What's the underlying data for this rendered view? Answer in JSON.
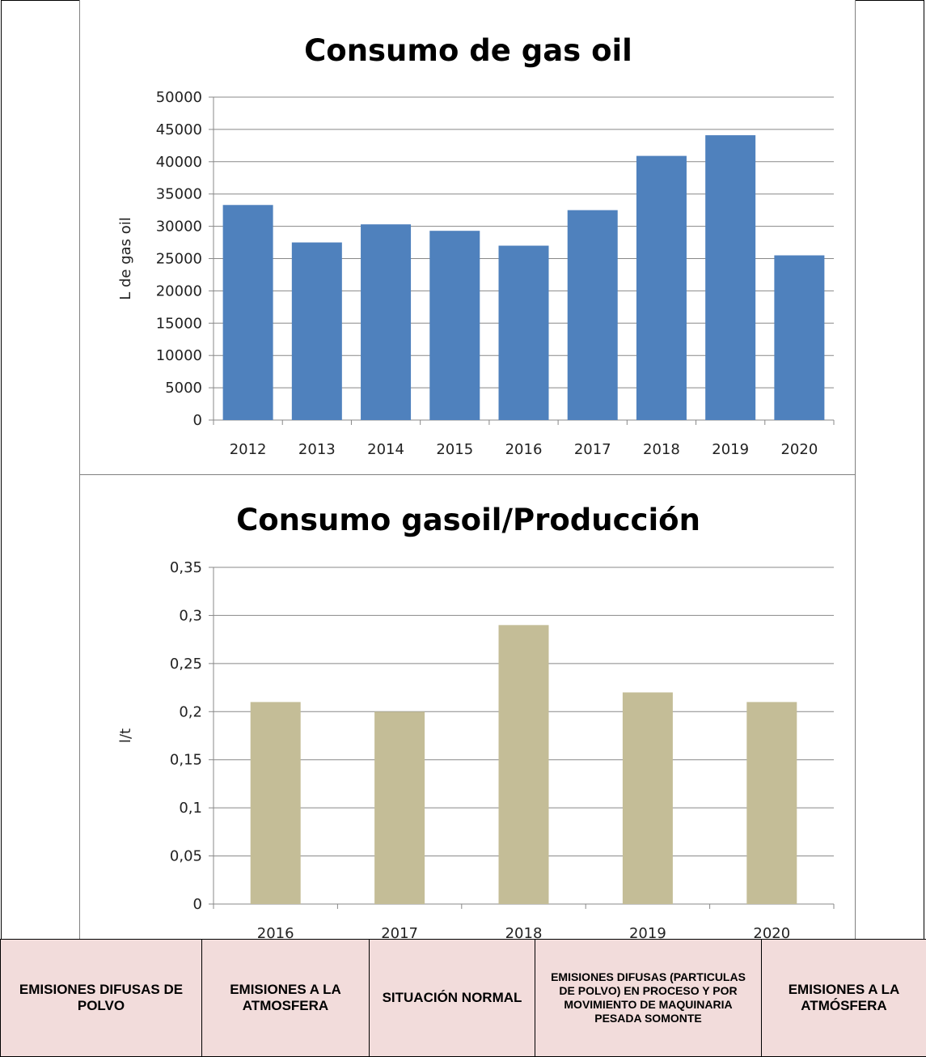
{
  "chart_data": [
    {
      "type": "bar",
      "title": "Consumo de gas oil",
      "ylabel": "L de gas oil",
      "xlabel": "",
      "categories": [
        "2012",
        "2013",
        "2014",
        "2015",
        "2016",
        "2017",
        "2018",
        "2019",
        "2020"
      ],
      "values": [
        33300,
        27500,
        30300,
        29300,
        27000,
        32500,
        40900,
        44100,
        25500
      ],
      "ylim": [
        0,
        50000
      ],
      "yticks": [
        "0",
        "5000",
        "10000",
        "15000",
        "20000",
        "25000",
        "30000",
        "35000",
        "40000",
        "45000",
        "50000"
      ],
      "bar_color": "#4f81bd",
      "grid": true,
      "legend": "none"
    },
    {
      "type": "bar",
      "title": "Consumo gasoil/Producción",
      "ylabel": "l/t",
      "xlabel": "",
      "categories": [
        "2016",
        "2017",
        "2018",
        "2019",
        "2020"
      ],
      "values": [
        0.21,
        0.2,
        0.29,
        0.22,
        0.21
      ],
      "ylim": [
        0,
        0.35
      ],
      "yticks": [
        "0",
        "0,05",
        "0,1",
        "0,15",
        "0,2",
        "0,25",
        "0,3",
        "0,35"
      ],
      "bar_color": "#c4bd97",
      "grid": true,
      "legend": "none"
    }
  ],
  "table": {
    "cells": [
      "EMISIONES DIFUSAS DE POLVO",
      "EMISIONES A LA ATMOSFERA",
      "SITUACIÓN NORMAL",
      "EMISIONES DIFUSAS (PARTICULAS DE POLVO) EN PROCESO Y POR MOVIMIENTO DE MAQUINARIA PESADA SOMONTE",
      "EMISIONES A LA ATMÓSFERA"
    ],
    "background": "#f2dcdb"
  }
}
